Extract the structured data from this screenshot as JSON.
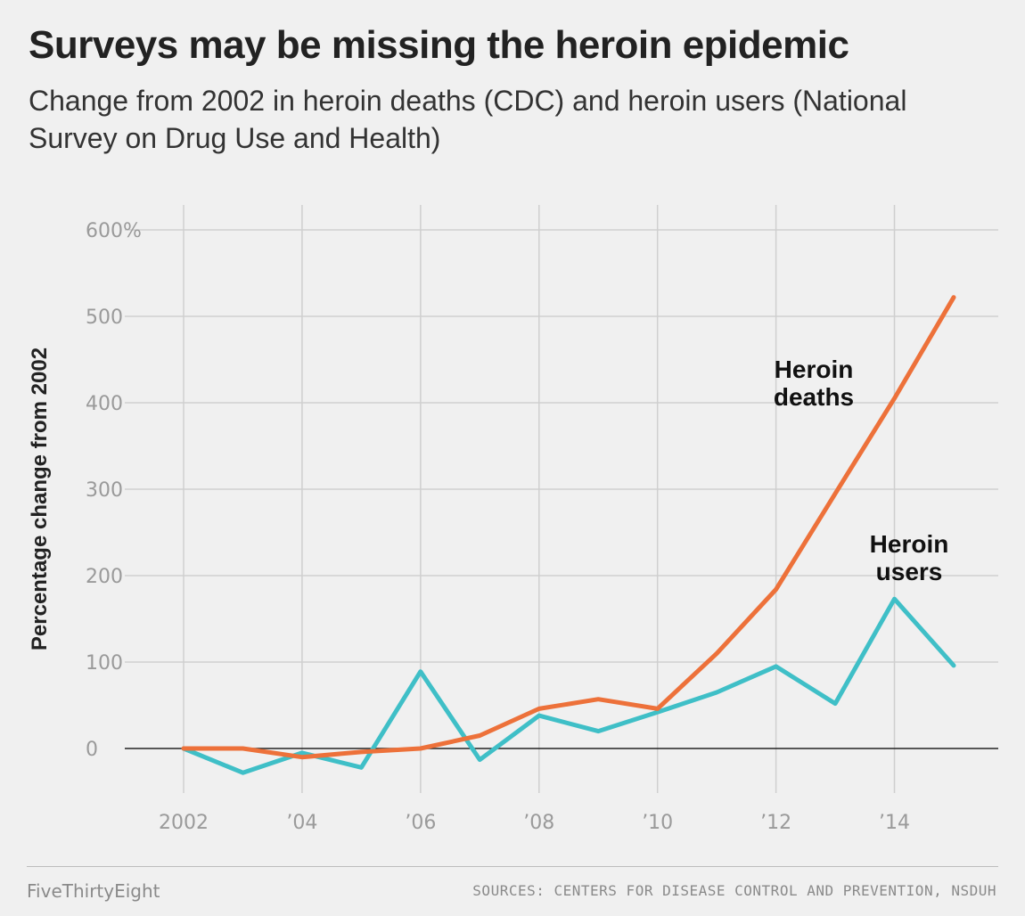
{
  "header": {
    "title": "Surveys may be missing the heroin epidemic",
    "subtitle": "Change from 2002 in heroin deaths (CDC) and heroin users (National Survey on Drug Use and Health)"
  },
  "footer": {
    "brand": "FiveThirtyEight",
    "source": "SOURCES: CENTERS FOR DISEASE CONTROL AND PREVENTION, NSDUH"
  },
  "chart_data": {
    "type": "line",
    "title": "Surveys may be missing the heroin epidemic",
    "subtitle": "Change from 2002 in heroin deaths (CDC) and heroin users (National Survey on Drug Use and Health)",
    "ylabel": "Percentage change from 2002",
    "xlabel": "",
    "x": [
      2002,
      2003,
      2004,
      2005,
      2006,
      2007,
      2008,
      2009,
      2010,
      2011,
      2012,
      2013,
      2014,
      2015
    ],
    "xlim": [
      2002,
      2015
    ],
    "ylim": [
      -50,
      620
    ],
    "x_ticks": [
      2002,
      2004,
      2006,
      2008,
      2010,
      2012,
      2014
    ],
    "x_tick_labels": [
      "2002",
      "’04",
      "’06",
      "’08",
      "’10",
      "’12",
      "’14"
    ],
    "y_ticks": [
      0,
      100,
      200,
      300,
      400,
      500,
      600
    ],
    "y_tick_labels": [
      "0",
      "100",
      "200",
      "300",
      "400",
      "500",
      "600%"
    ],
    "grid": true,
    "legend": "none",
    "series": [
      {
        "name": "Heroin deaths",
        "label_lines": [
          "Heroin",
          "deaths"
        ],
        "color": "#ed713a",
        "values": [
          0,
          0,
          -10,
          -4,
          0,
          15,
          46,
          57,
          46,
          110,
          184,
          295,
          405,
          522
        ]
      },
      {
        "name": "Heroin users",
        "label_lines": [
          "Heroin",
          "users"
        ],
        "color": "#3fbfc7",
        "values": [
          0,
          -28,
          -5,
          -22,
          89,
          -13,
          38,
          20,
          42,
          65,
          95,
          52,
          173,
          96
        ]
      }
    ]
  }
}
